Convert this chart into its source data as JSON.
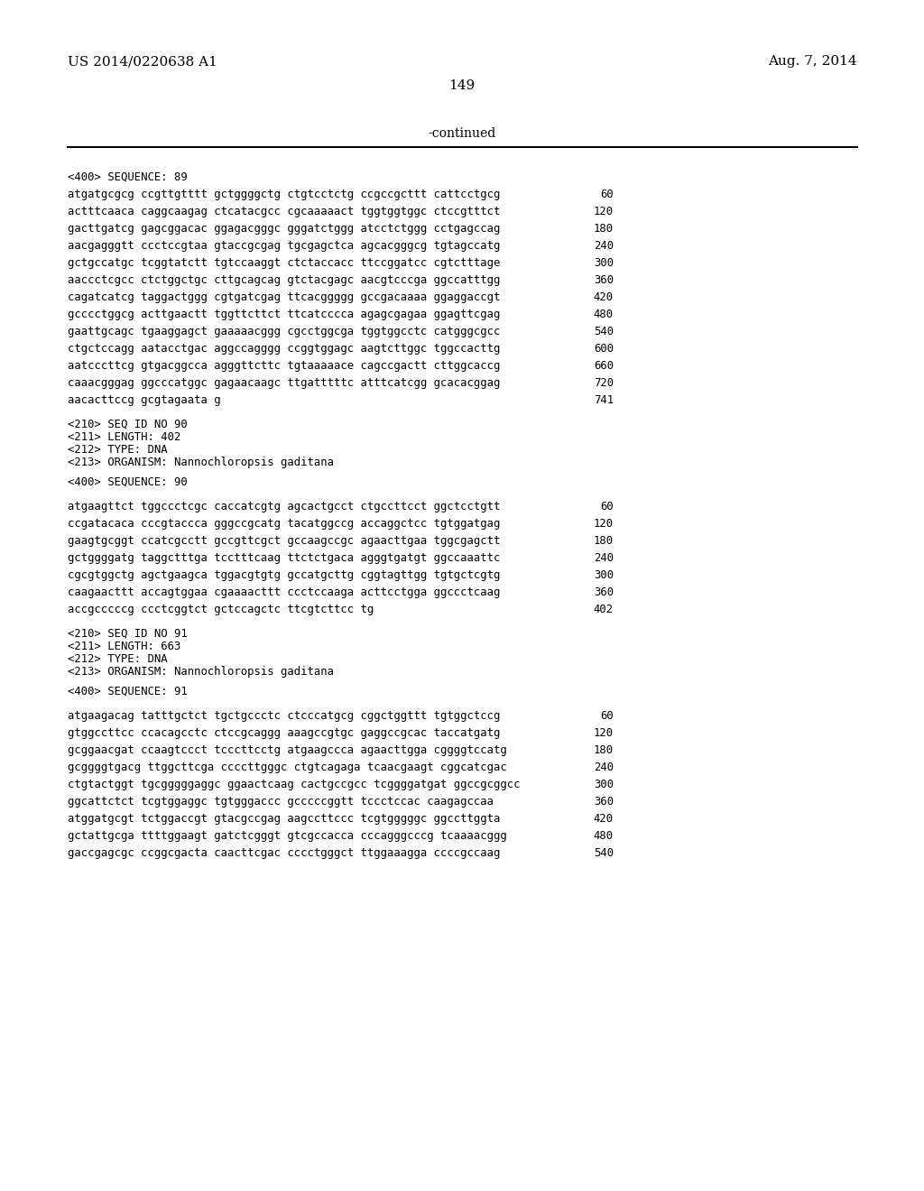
{
  "bg_color": "#ffffff",
  "header_left": "US 2014/0220638 A1",
  "header_right": "Aug. 7, 2014",
  "page_number": "149",
  "continued_text": "-continued",
  "content": [
    {
      "type": "label",
      "text": "<400> SEQUENCE: 89"
    },
    {
      "type": "seq",
      "text": "atgatgcgcg ccgttgtttt gctggggctg ctgtcctctg ccgccgcttt cattcctgcg",
      "num": "60"
    },
    {
      "type": "seq",
      "text": "actttcaaca caggcaagag ctcatacgcc cgcaaaaact tggtggtggc ctccgtttct",
      "num": "120"
    },
    {
      "type": "seq",
      "text": "gacttgatcg gagcggacac ggagacgggc gggatctggg atcctctggg cctgagccag",
      "num": "180"
    },
    {
      "type": "seq",
      "text": "aacgagggtt ccctccgtaa gtaccgcgag tgcgagctca agcacgggcg tgtagccatg",
      "num": "240"
    },
    {
      "type": "seq",
      "text": "gctgccatgc tcggtatctt tgtccaaggt ctctaccacc ttccggatcc cgtctttage",
      "num": "300"
    },
    {
      "type": "seq",
      "text": "aaccctcgcc ctctggctgc cttgcagcag gtctacgagc aacgtcccga ggccatttgg",
      "num": "360"
    },
    {
      "type": "seq",
      "text": "cagatcatcg taggactggg cgtgatcgag ttcacggggg gccgacaaaa ggaggaccgt",
      "num": "420"
    },
    {
      "type": "seq",
      "text": "gcccctggcg acttgaactt tggttcttct ttcatcccca agagcgagaa ggagttcgag",
      "num": "480"
    },
    {
      "type": "seq",
      "text": "gaattgcagc tgaaggagct gaaaaacggg cgcctggcga tggtggcctc catgggcgcc",
      "num": "540"
    },
    {
      "type": "seq",
      "text": "ctgctccagg aatacctgac aggccagggg ccggtggagc aagtcttggc tggccacttg",
      "num": "600"
    },
    {
      "type": "seq",
      "text": "aatcccttcg gtgacggcca agggttcttc tgtaaaaace cagccgactt cttggcaccg",
      "num": "660"
    },
    {
      "type": "seq",
      "text": "caaacgggag ggcccatggc gagaacaagc ttgatttttc atttcatcgg gcacacggag",
      "num": "720"
    },
    {
      "type": "seq",
      "text": "aacacttccg gcgtagaata g",
      "num": "741"
    },
    {
      "type": "blank"
    },
    {
      "type": "meta",
      "text": "<210> SEQ ID NO 90"
    },
    {
      "type": "meta",
      "text": "<211> LENGTH: 402"
    },
    {
      "type": "meta",
      "text": "<212> TYPE: DNA"
    },
    {
      "type": "meta",
      "text": "<213> ORGANISM: Nannochloropsis gaditana"
    },
    {
      "type": "blank"
    },
    {
      "type": "label",
      "text": "<400> SEQUENCE: 90"
    },
    {
      "type": "blank"
    },
    {
      "type": "seq",
      "text": "atgaagttct tggccctcgc caccatcgtg agcactgcct ctgccttcct ggctcctgtt",
      "num": "60"
    },
    {
      "type": "seq",
      "text": "ccgatacaca cccgtaccca gggccgcatg tacatggccg accaggctcc tgtggatgag",
      "num": "120"
    },
    {
      "type": "seq",
      "text": "gaagtgcggt ccatcgcctt gccgttcgct gccaagccgc agaacttgaa tggcgagctt",
      "num": "180"
    },
    {
      "type": "seq",
      "text": "gctggggatg taggctttga tcctttcaag ttctctgaca agggtgatgt ggccaaattc",
      "num": "240"
    },
    {
      "type": "seq",
      "text": "cgcgtggctg agctgaagca tggacgtgtg gccatgcttg cggtagttgg tgtgctcgtg",
      "num": "300"
    },
    {
      "type": "seq",
      "text": "caagaacttt accagtggaa cgaaaacttt ccctccaaga acttcctgga ggccctcaag",
      "num": "360"
    },
    {
      "type": "seq",
      "text": "accgcccccg ccctcggtct gctccagctc ttcgtcttcc tg",
      "num": "402"
    },
    {
      "type": "blank"
    },
    {
      "type": "meta",
      "text": "<210> SEQ ID NO 91"
    },
    {
      "type": "meta",
      "text": "<211> LENGTH: 663"
    },
    {
      "type": "meta",
      "text": "<212> TYPE: DNA"
    },
    {
      "type": "meta",
      "text": "<213> ORGANISM: Nannochloropsis gaditana"
    },
    {
      "type": "blank"
    },
    {
      "type": "label",
      "text": "<400> SEQUENCE: 91"
    },
    {
      "type": "blank"
    },
    {
      "type": "seq",
      "text": "atgaagacag tatttgctct tgctgccctc ctcccatgcg cggctggttt tgtggctccg",
      "num": "60"
    },
    {
      "type": "seq",
      "text": "gtggccttcc ccacagcctc ctccgcaggg aaagccgtgc gaggccgcac taccatgatg",
      "num": "120"
    },
    {
      "type": "seq",
      "text": "gcggaacgat ccaagtccct tcccttcctg atgaagccca agaacttgga cggggtccatg",
      "num": "180"
    },
    {
      "type": "seq",
      "text": "gcggggtgacg ttggcttcga ccccttgggc ctgtcagaga tcaacgaagt cggcatcgac",
      "num": "240"
    },
    {
      "type": "seq",
      "text": "ctgtactggt tgcgggggaggc ggaactcaag cactgccgcc tcggggatgat ggccgcggcc",
      "num": "300"
    },
    {
      "type": "seq",
      "text": "ggcattctct tcgtggaggc tgtgggaccc gcccccggtt tccctccac caagagccaa",
      "num": "360"
    },
    {
      "type": "seq",
      "text": "atggatgcgt tctggaccgt gtacgccgag aagccttccc tcgtgggggc ggccttggta",
      "num": "420"
    },
    {
      "type": "seq",
      "text": "gctattgcga ttttggaagt gatctcgggt gtcgccacca cccagggcccg tcaaaacggg",
      "num": "480"
    },
    {
      "type": "seq",
      "text": "gaccgagcgc ccggcgacta caacttcgac cccctgggct ttggaaagga ccccgccaag",
      "num": "540"
    }
  ]
}
